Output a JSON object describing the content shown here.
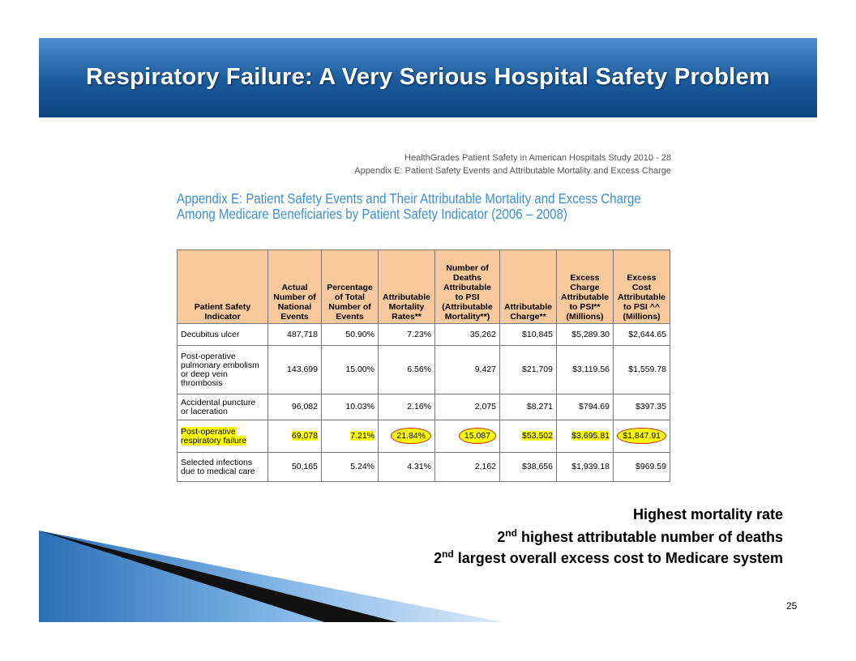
{
  "header": {
    "title": "Respiratory Failure: A Very Serious Hospital Safety Problem"
  },
  "source": {
    "line1": "HealthGrades Patient Safety in American Hospitals Study 2010 - 28",
    "line2": "Appendix E: Patient Safety Events and Attributable Mortality and Excess Charge"
  },
  "appendix_title": {
    "line1": "Appendix E: Patient Safety Events and Their Attributable Mortality and Excess Charge",
    "line2": "Among Medicare Beneficiaries by Patient Safety Indicator (2006 – 2008)"
  },
  "table": {
    "headers": [
      "Patient Safety Indicator",
      "Actual Number of National Events",
      "Percentage of Total Number of Events",
      "Attributable Mortality Rates**",
      "Number of Deaths Attributable to PSI (Attributable Mortality**)",
      "Attributable Charge**",
      "Excess Charge Attributable to PSI** (Millions)",
      "Excess Cost Attributable to PSI ^^ (Millions)"
    ],
    "rows": [
      [
        "Decubitus ulcer",
        "487,718",
        "50.90%",
        "7.23%",
        "35,262",
        "$10,845",
        "$5,289.30",
        "$2,644.65"
      ],
      [
        "Post-operative pulmonary embolism or deep vein thrombosis",
        "143,699",
        "15.00%",
        "6.56%",
        "9,427",
        "$21,709",
        "$3,119.56",
        "$1,559.78"
      ],
      [
        "Accidental puncture or laceration",
        "96,082",
        "10.03%",
        "2.16%",
        "2,075",
        "$8,271",
        "$794.69",
        "$397.35"
      ],
      [
        "Post-operative respiratory failure",
        "69,078",
        "7.21%",
        "21.84%",
        "15,087",
        "$53,502",
        "$3,695.81",
        "$1,847.91"
      ],
      [
        "Selected infections due to medical care",
        "50,165",
        "5.24%",
        "4.31%",
        "2,162",
        "$38,656",
        "$1,939.18",
        "$969.59"
      ]
    ],
    "highlight_row": 3,
    "circled_columns": [
      3,
      4,
      7
    ]
  },
  "findings": [
    {
      "text": "Highest mortality rate"
    },
    {
      "number": "2",
      "sup": "nd",
      "text": "highest attributable number of deaths"
    },
    {
      "number": "2",
      "sup": "nd",
      "text": "largest overall excess cost to Medicare system"
    }
  ],
  "page_number": "25"
}
